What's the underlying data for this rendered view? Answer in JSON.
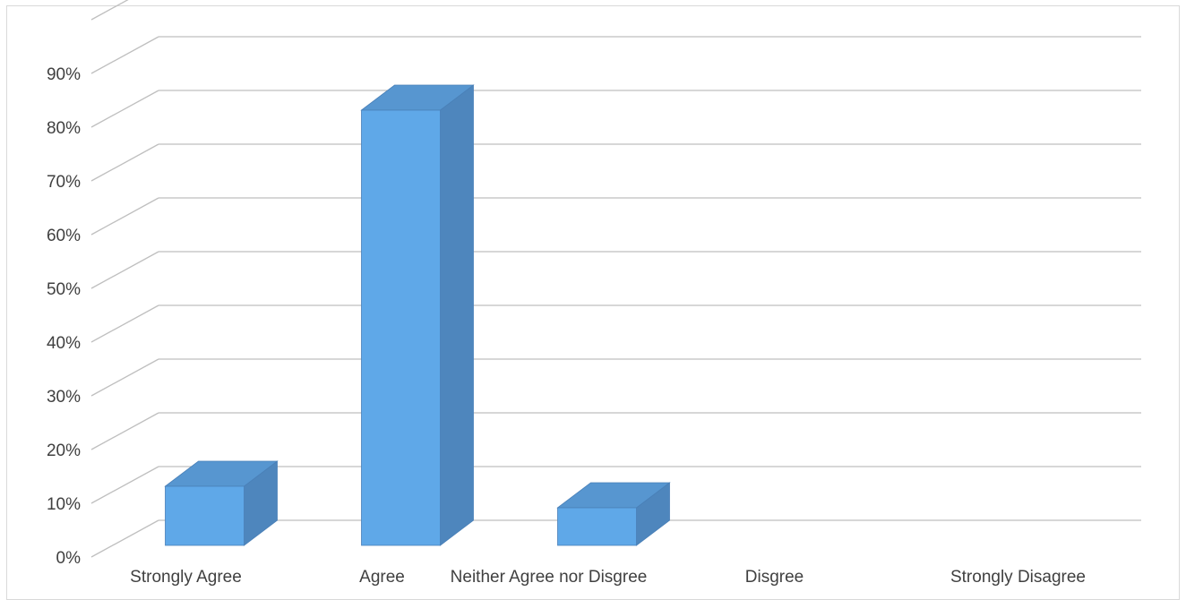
{
  "chart_data": {
    "type": "bar",
    "style": "3d-column",
    "categories": [
      "Strongly Agree",
      "Agree",
      "Neither Agree nor Disgree",
      "Disgree",
      "Strongly Disagree"
    ],
    "values": [
      11,
      81,
      7,
      0,
      0
    ],
    "value_unit": "%",
    "title": "",
    "xlabel": "",
    "ylabel": "",
    "ylim": [
      0,
      100
    ],
    "y_ticks": [
      "0%",
      "10%",
      "20%",
      "30%",
      "40%",
      "50%",
      "60%",
      "70%",
      "80%",
      "90%"
    ],
    "grid": true,
    "legend": "none",
    "colors": {
      "bar_front": "#5fa8e8",
      "bar_side": "#4e86bd",
      "bar_top": "#5796d0",
      "bar_edge": "#4a80b8",
      "gridline": "#bfbfbf",
      "axis_text": "#404040"
    }
  }
}
